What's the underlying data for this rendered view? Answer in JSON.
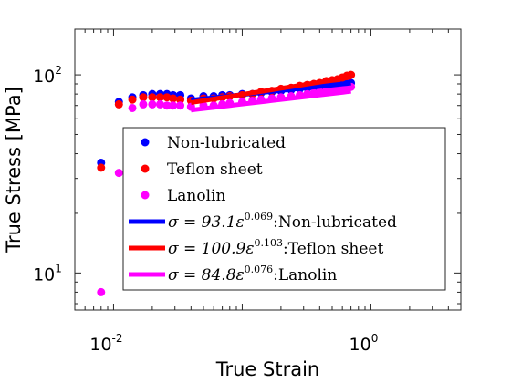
{
  "chart_data": {
    "type": "scatter",
    "xlabel": "True Strain",
    "ylabel": "True Stress [MPa]",
    "xscale": "log",
    "yscale": "log",
    "xlim": [
      0.005,
      5
    ],
    "ylim": [
      6.5,
      170
    ],
    "xticks": [
      {
        "base": "10",
        "exp": "-2",
        "value": 0.01
      },
      {
        "base": "10",
        "exp": "0",
        "value": 1
      }
    ],
    "yticks": [
      {
        "base": "10",
        "exp": "1",
        "value": 10
      },
      {
        "base": "10",
        "exp": "2",
        "value": 100
      }
    ],
    "grid": false,
    "legend_position": "lower-right",
    "series": [
      {
        "name": "Non-lubricated",
        "kind": "scatter",
        "color": "#0000ff",
        "x": [
          0.008,
          0.011,
          0.014,
          0.017,
          0.02,
          0.023,
          0.026,
          0.029,
          0.033,
          0.04,
          0.05,
          0.06,
          0.07,
          0.08,
          0.1,
          0.12,
          0.14,
          0.17,
          0.2,
          0.24,
          0.28,
          0.32,
          0.36,
          0.4,
          0.45,
          0.5,
          0.55,
          0.6,
          0.65,
          0.7
        ],
        "y": [
          36,
          73,
          77,
          79,
          80,
          80,
          80,
          79,
          79,
          76,
          78,
          78,
          79,
          79,
          80,
          80,
          81,
          82,
          83,
          84,
          85,
          86,
          86,
          87,
          87,
          88,
          88,
          89,
          90,
          91
        ]
      },
      {
        "name": "Teflon sheet",
        "kind": "scatter",
        "color": "#ff0000",
        "x": [
          0.008,
          0.011,
          0.014,
          0.017,
          0.02,
          0.023,
          0.026,
          0.029,
          0.033,
          0.04,
          0.05,
          0.06,
          0.07,
          0.08,
          0.1,
          0.12,
          0.14,
          0.17,
          0.2,
          0.24,
          0.28,
          0.32,
          0.36,
          0.4,
          0.45,
          0.5,
          0.55,
          0.6,
          0.65,
          0.7
        ],
        "y": [
          34,
          71,
          75,
          77,
          77,
          77,
          77,
          76,
          75,
          74,
          76,
          76,
          77,
          78,
          79,
          80,
          82,
          83,
          85,
          86,
          88,
          89,
          90,
          91,
          93,
          94,
          95,
          97,
          99,
          100
        ]
      },
      {
        "name": "Lanolin",
        "kind": "scatter",
        "color": "#ff00ff",
        "x": [
          0.008,
          0.011,
          0.014,
          0.017,
          0.02,
          0.023,
          0.026,
          0.029,
          0.033,
          0.04,
          0.05,
          0.06,
          0.07,
          0.08,
          0.1,
          0.12,
          0.14,
          0.17,
          0.2,
          0.24,
          0.28,
          0.32,
          0.36,
          0.4,
          0.45,
          0.5,
          0.55,
          0.6,
          0.65,
          0.7
        ],
        "y": [
          8,
          32,
          68,
          71,
          71,
          71,
          70,
          70,
          70,
          69,
          70,
          70,
          71,
          72,
          73,
          74,
          75,
          76,
          77,
          78,
          79,
          80,
          81,
          82,
          83,
          84,
          85,
          85,
          86,
          87
        ]
      },
      {
        "name": "σ = 93.1ε^0.069:Non-lubricated",
        "legend": {
          "prefix": "σ = 93.1",
          "var": "ε",
          "exp": "0.069",
          "suffix": ":Non-lubricated"
        },
        "kind": "fit",
        "color": "#0000ff",
        "coef": 93.1,
        "exponent": 0.069,
        "xrange": [
          0.04,
          0.7
        ]
      },
      {
        "name": "σ = 100.9ε^0.103:Teflon sheet",
        "legend": {
          "prefix": "σ = 100.9",
          "var": "ε",
          "exp": "0.103",
          "suffix": ":Teflon sheet"
        },
        "kind": "fit",
        "color": "#ff0000",
        "coef": 100.9,
        "exponent": 0.103,
        "xrange": [
          0.04,
          0.7
        ]
      },
      {
        "name": "σ = 84.8ε^0.076:Lanolin",
        "legend": {
          "prefix": "σ = 84.8",
          "var": "ε",
          "exp": "0.076",
          "suffix": ":Lanolin"
        },
        "kind": "fit",
        "color": "#ff00ff",
        "coef": 84.8,
        "exponent": 0.076,
        "xrange": [
          0.04,
          0.7
        ]
      }
    ]
  }
}
